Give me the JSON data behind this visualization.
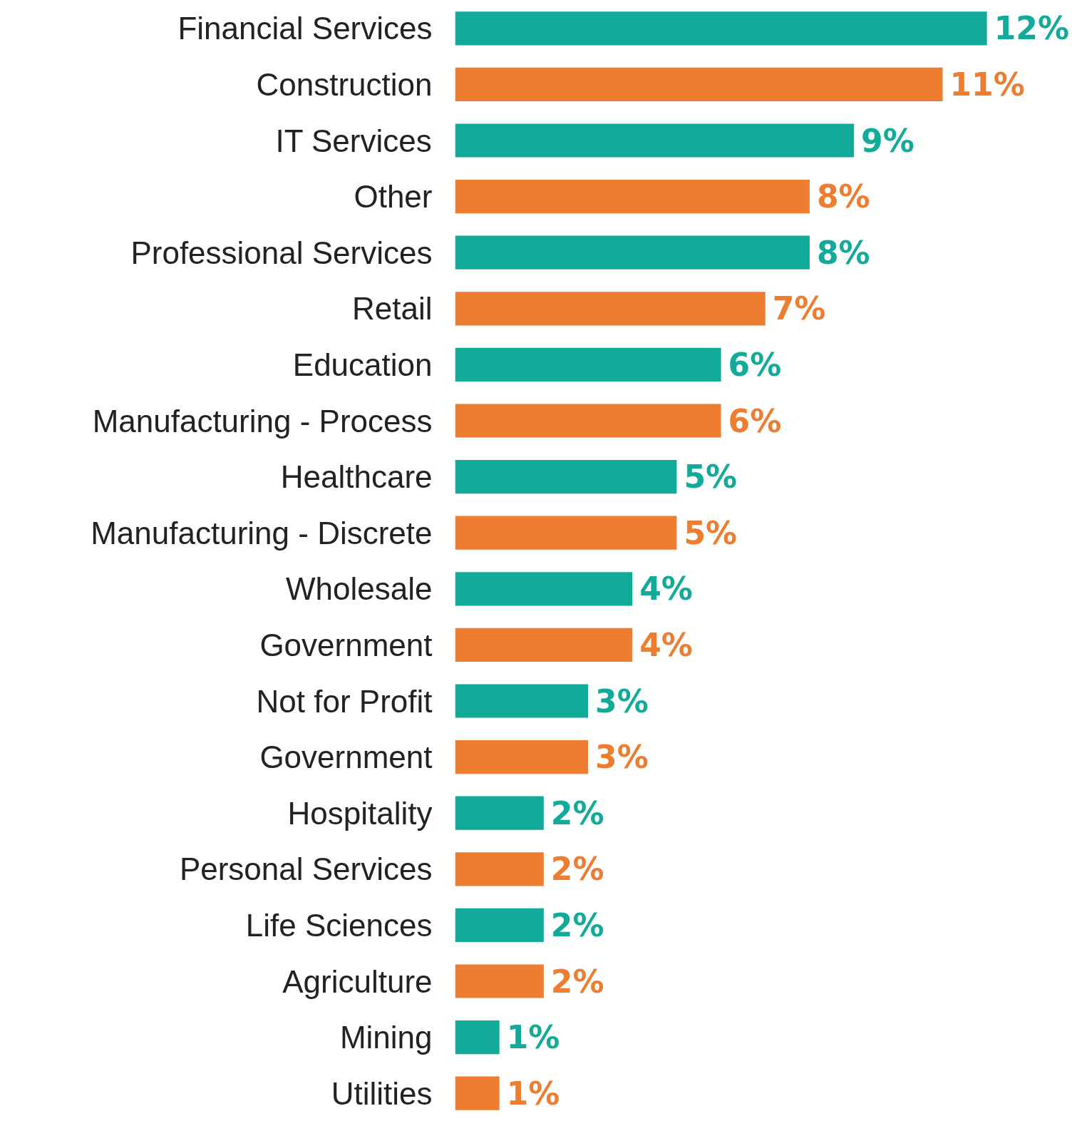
{
  "chart_data": {
    "type": "bar",
    "orientation": "horizontal",
    "grid": false,
    "value_labels": [
      "12%",
      "11%",
      "9%",
      "8%",
      "8%",
      "7%",
      "6%",
      "6%",
      "5%",
      "5%",
      "4%",
      "4%",
      "3%",
      "3%",
      "2%",
      "2%",
      "2%",
      "2%",
      "1%",
      "1%"
    ],
    "categories": [
      "Financial Services",
      "Construction",
      "IT Services",
      "Other",
      "Professional Services",
      "Retail",
      "Education",
      "Manufacturing - Process",
      "Healthcare",
      "Manufacturing - Discrete",
      "Wholesale",
      "Government",
      "Not for Profit",
      "Government",
      "Hospitality",
      "Personal Services",
      "Life Sciences",
      "Agriculture",
      "Mining",
      "Utilities"
    ],
    "values": [
      12,
      11,
      9,
      8,
      8,
      7,
      6,
      6,
      5,
      5,
      4,
      4,
      3,
      3,
      2,
      2,
      2,
      2,
      1,
      1
    ],
    "colors": [
      "#12ab9a",
      "#ed7d31",
      "#12ab9a",
      "#ed7d31",
      "#12ab9a",
      "#ed7d31",
      "#12ab9a",
      "#ed7d31",
      "#12ab9a",
      "#ed7d31",
      "#12ab9a",
      "#ed7d31",
      "#12ab9a",
      "#ed7d31",
      "#12ab9a",
      "#ed7d31",
      "#12ab9a",
      "#ed7d31",
      "#12ab9a",
      "#ed7d31"
    ]
  }
}
